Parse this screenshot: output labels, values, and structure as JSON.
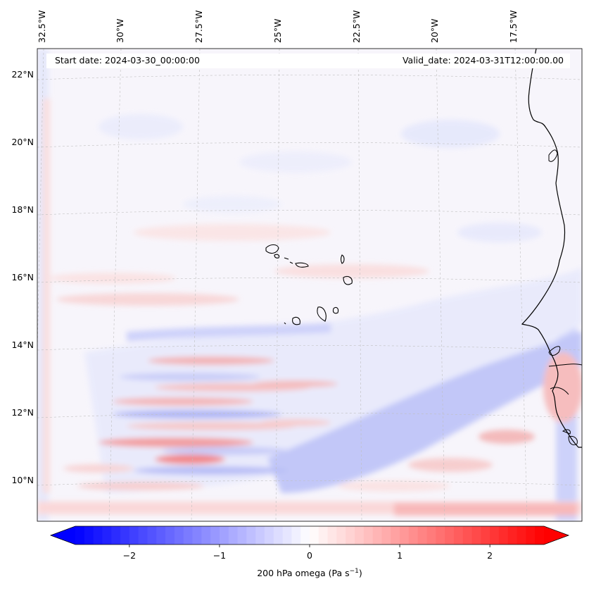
{
  "map": {
    "start_date": "Start date: 2024-03-30_00:00:00",
    "valid_date": "Valid_date: 2024-03-31T12:00:00.00",
    "lat_labels": [
      "22°N",
      "20°N",
      "18°N",
      "16°N",
      "14°N",
      "12°N",
      "10°N"
    ],
    "lon_labels": [
      "32.5°W",
      "30°W",
      "27.5°W",
      "25°W",
      "22.5°W",
      "20°W",
      "17.5°W"
    ],
    "colorbar": {
      "label_text": "200 hPa omega (Pa s",
      "label_sup": "−1",
      "label_close": ")",
      "ticks": [
        "−2",
        "−1",
        "0",
        "1",
        "2"
      ],
      "tick_values": [
        -2,
        -1,
        0,
        1,
        2
      ],
      "range": [
        -2.6,
        2.6
      ],
      "cmap": "bwr",
      "colors": {
        "low": "#0000ff",
        "mid": "#ffffff",
        "high": "#ff0000"
      }
    }
  }
}
